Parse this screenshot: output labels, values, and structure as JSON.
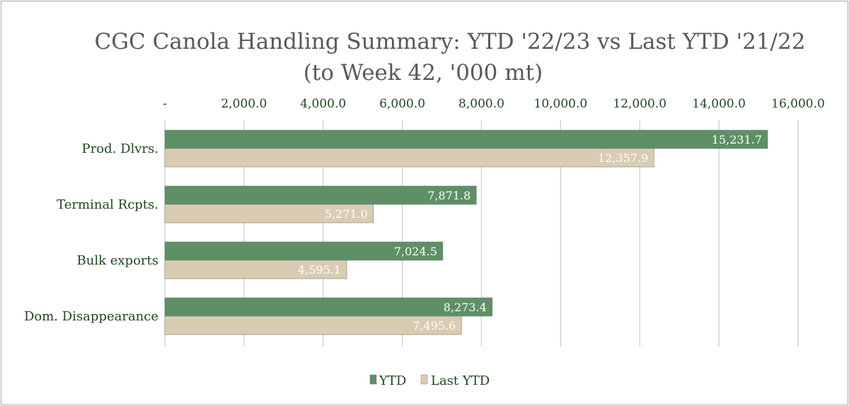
{
  "chart_data": {
    "type": "bar",
    "orientation": "horizontal",
    "title_line1": "CGC Canola Handling Summary: YTD '22/23 vs Last YTD '21/22",
    "title_line2": "(to Week 42, '000 mt)",
    "categories": [
      "Prod. Dlvrs.",
      "Terminal Rcpts.",
      "Bulk exports",
      "Dom. Disappearance"
    ],
    "series": [
      {
        "name": "YTD",
        "color": "#5e8f66",
        "values": [
          15231.7,
          7871.8,
          7024.5,
          8273.4
        ],
        "labels": [
          "15,231.7",
          "7,871.8",
          "7,024.5",
          "8,273.4"
        ]
      },
      {
        "name": "Last YTD",
        "color": "#d9ccb2",
        "values": [
          12357.9,
          5271.0,
          4595.1,
          7495.6
        ],
        "labels": [
          "12,357.9",
          "5,271.0",
          "4,595.1",
          "7,495.6"
        ]
      }
    ],
    "xlim": [
      0,
      16000
    ],
    "x_ticks": [
      0,
      2000,
      4000,
      6000,
      8000,
      10000,
      12000,
      14000,
      16000
    ],
    "x_tick_labels": [
      "-",
      "2,000.0",
      "4,000.0",
      "6,000.0",
      "8,000.0",
      "10,000.0",
      "12,000.0",
      "14,000.0",
      "16,000.0"
    ],
    "axis_position": "top",
    "grid": true,
    "legend_position": "bottom"
  }
}
